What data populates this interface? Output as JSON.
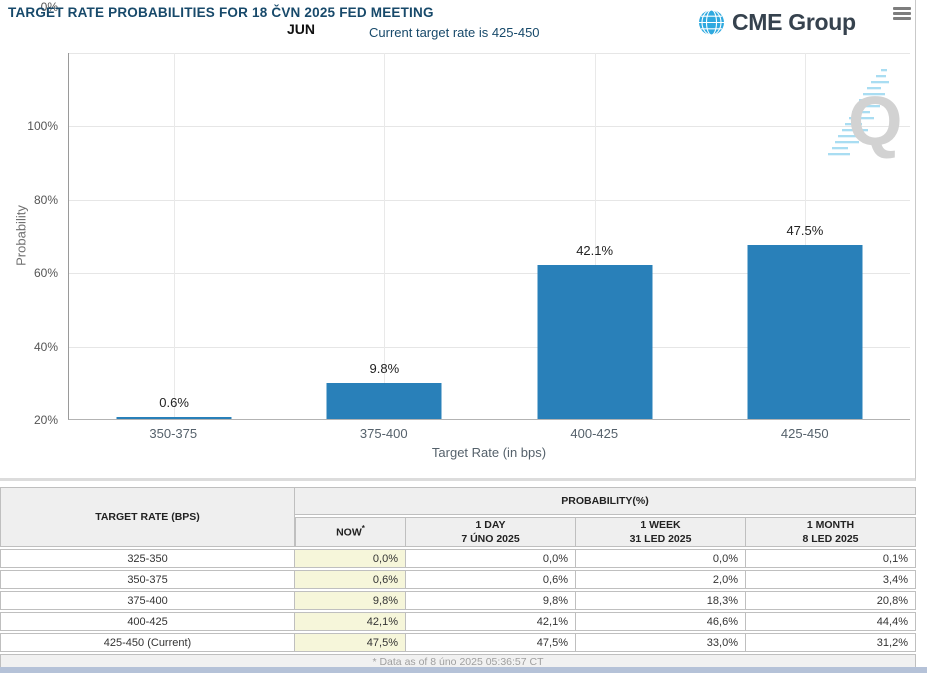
{
  "header": {
    "title": "TARGET RATE PROBABILITIES FOR 18 ČVN 2025 FED MEETING",
    "month_label": "JUN",
    "subtitle": "Current target rate is 425-450",
    "brand_name": "CME Group",
    "watermark_letter": "Q"
  },
  "chart_data": {
    "type": "bar",
    "title": "TARGET RATE PROBABILITIES FOR 18 ČVN 2025 FED MEETING",
    "categories": [
      "350-375",
      "375-400",
      "400-425",
      "425-450"
    ],
    "values": [
      0.6,
      9.8,
      42.1,
      47.5
    ],
    "value_labels": [
      "0.6%",
      "9.8%",
      "42.1%",
      "47.5%"
    ],
    "xlabel": "Target Rate (in bps)",
    "ylabel": "Probability",
    "ylim": [
      0,
      100
    ],
    "yticks": [
      "100%",
      "80%",
      "60%",
      "40%",
      "20%",
      "0%"
    ],
    "grid": true,
    "legend": false,
    "bar_color": "#2980b9"
  },
  "table": {
    "headers": {
      "target_rate": "TARGET RATE (BPS)",
      "probability": "PROBABILITY(%)",
      "now": "NOW",
      "now_star": "*",
      "day1": "1 DAY",
      "day1_date": "7 ÚNO 2025",
      "week1": "1 WEEK",
      "week1_date": "31 LED 2025",
      "month1": "1 MONTH",
      "month1_date": "8 LED 2025"
    },
    "rows": [
      {
        "rate": "325-350",
        "now": "0,0%",
        "day": "0,0%",
        "week": "0,0%",
        "month": "0,1%"
      },
      {
        "rate": "350-375",
        "now": "0,6%",
        "day": "0,6%",
        "week": "2,0%",
        "month": "3,4%"
      },
      {
        "rate": "375-400",
        "now": "9,8%",
        "day": "9,8%",
        "week": "18,3%",
        "month": "20,8%"
      },
      {
        "rate": "400-425",
        "now": "42,1%",
        "day": "42,1%",
        "week": "46,6%",
        "month": "44,4%"
      },
      {
        "rate": "425-450 (Current)",
        "now": "47,5%",
        "day": "47,5%",
        "week": "33,0%",
        "month": "31,2%"
      }
    ],
    "footnote": "* Data as of 8 úno 2025 05:36:57 CT"
  },
  "colors": {
    "bar": "#2980b9",
    "title_navy": "#17496a",
    "now_column_bg": "#f6f6da",
    "bottom_bar": "#b5c2d8"
  }
}
